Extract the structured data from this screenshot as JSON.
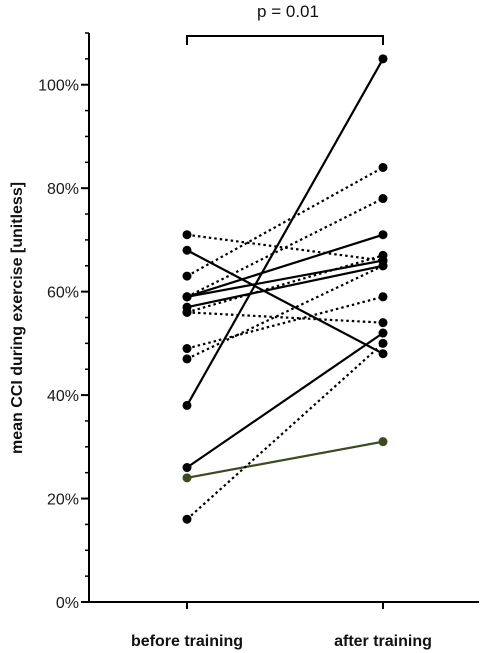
{
  "chart_data": {
    "type": "line",
    "categories": [
      "before training",
      "after training"
    ],
    "ylabel": "mean CCI during exercise [unitless]",
    "ylim": [
      0,
      110
    ],
    "yticks": [
      0,
      20,
      40,
      60,
      80,
      100
    ],
    "ytick_labels": [
      "0%",
      "20%",
      "40%",
      "60%",
      "80%",
      "100%"
    ],
    "annotation": "p = 0.01",
    "series": [
      {
        "values": [
          38,
          105
        ],
        "style": "solid",
        "color": "#000000"
      },
      {
        "values": [
          59,
          71
        ],
        "style": "solid",
        "color": "#000000"
      },
      {
        "values": [
          59,
          66
        ],
        "style": "solid",
        "color": "#000000"
      },
      {
        "values": [
          57,
          65
        ],
        "style": "solid",
        "color": "#000000"
      },
      {
        "values": [
          68,
          48
        ],
        "style": "solid",
        "color": "#000000"
      },
      {
        "values": [
          26,
          52
        ],
        "style": "solid",
        "color": "#000000"
      },
      {
        "values": [
          24,
          31
        ],
        "style": "solid",
        "color": "#3c4a1e"
      },
      {
        "values": [
          71,
          66
        ],
        "style": "dotted",
        "color": "#000000"
      },
      {
        "values": [
          63,
          84
        ],
        "style": "dotted",
        "color": "#000000"
      },
      {
        "values": [
          59,
          78
        ],
        "style": "dotted",
        "color": "#000000"
      },
      {
        "values": [
          56,
          67
        ],
        "style": "dotted",
        "color": "#000000"
      },
      {
        "values": [
          56,
          54
        ],
        "style": "dotted",
        "color": "#000000"
      },
      {
        "values": [
          49,
          59
        ],
        "style": "dotted",
        "color": "#000000"
      },
      {
        "values": [
          47,
          65
        ],
        "style": "dotted",
        "color": "#000000"
      },
      {
        "values": [
          16,
          50
        ],
        "style": "dotted",
        "color": "#000000"
      }
    ]
  }
}
